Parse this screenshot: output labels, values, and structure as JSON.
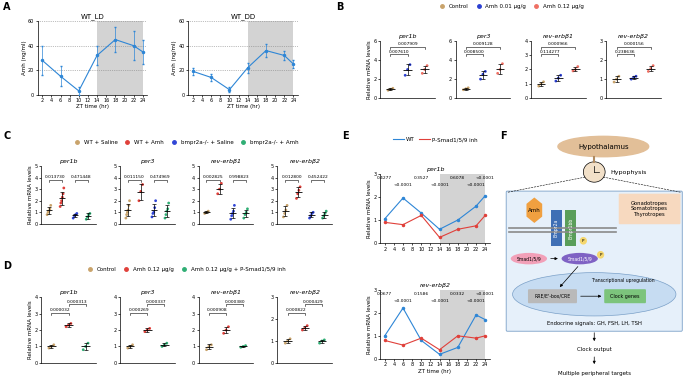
{
  "panel_labels": [
    "A",
    "B",
    "C",
    "D",
    "E",
    "F"
  ],
  "chart_data": [
    {
      "type": "line",
      "title": "WT_LD",
      "xlabel": "ZT time (hr)",
      "ylabel": "Amh (ng/ml)",
      "x": [
        2,
        6,
        10,
        14,
        18,
        22,
        24
      ],
      "values": [
        28,
        15,
        3,
        32,
        45,
        40,
        35
      ],
      "errors": [
        12,
        8,
        3,
        8,
        10,
        12,
        10
      ],
      "color": "#2e86d6",
      "marker": "circle",
      "xlim": [
        1,
        25
      ],
      "xticks": [
        2,
        4,
        6,
        8,
        10,
        12,
        14,
        16,
        18,
        20,
        22,
        24
      ],
      "ylim": [
        0,
        60
      ],
      "yticks": [
        0,
        20,
        40,
        60
      ],
      "grid": true,
      "dark_phase": [
        14,
        24
      ]
    },
    {
      "type": "line",
      "title": "WT_DD",
      "xlabel": "ZT time (hr)",
      "ylabel": "Amh (ng/ml)",
      "x": [
        2,
        6,
        10,
        14,
        18,
        22,
        24
      ],
      "values": [
        19,
        14,
        4,
        22,
        36,
        32,
        25
      ],
      "errors": [
        3,
        3,
        2,
        4,
        5,
        4,
        3
      ],
      "color": "#2e86d6",
      "marker": "circle",
      "xlim": [
        1,
        25
      ],
      "xticks": [
        2,
        4,
        6,
        8,
        10,
        12,
        14,
        16,
        18,
        20,
        22,
        24
      ],
      "ylim": [
        0,
        60
      ],
      "yticks": [
        0,
        20,
        40,
        60
      ],
      "grid": true,
      "dark_phase": [
        14,
        24
      ]
    },
    {
      "type": "dot",
      "ylabel": "Relative mRNA levels",
      "legend": "upper center",
      "tick_labels": "y",
      "series": [
        {
          "name": "Control",
          "color": "#c9a36b"
        },
        {
          "name": "Amh 0.01 µg/g",
          "color": "#2b3fd1"
        },
        {
          "name": "Amh 0.12 µg/g",
          "color": "#ef6f63"
        }
      ],
      "panels": [
        {
          "title": "per1b",
          "ylim": [
            0,
            6
          ],
          "yticks": [
            0,
            2,
            4,
            6
          ],
          "values": [
            [
              0.85,
              0.95,
              1.05
            ],
            [
              2.4,
              3.0,
              3.5
            ],
            [
              2.6,
              3.0,
              3.4
            ]
          ],
          "comparisons": [
            {
              "groups": [
                0,
                1
              ],
              "p": "0.007610"
            },
            {
              "groups": [
                0,
                2
              ],
              "p": "0.007909"
            }
          ]
        },
        {
          "title": "per3",
          "ylim": [
            0,
            6
          ],
          "yticks": [
            0,
            2,
            4,
            6
          ],
          "values": [
            [
              0.9,
              1.0,
              1.1
            ],
            [
              2.0,
              2.5,
              2.8
            ],
            [
              2.6,
              3.0,
              3.6
            ]
          ],
          "comparisons": [
            {
              "groups": [
                0,
                1
              ],
              "p": "0.008500"
            },
            {
              "groups": [
                0,
                2
              ],
              "p": "0.009128"
            }
          ]
        },
        {
          "title": "rev-erbβ1",
          "ylim": [
            0,
            4
          ],
          "yticks": [
            0,
            1,
            2,
            3,
            4
          ],
          "values": [
            [
              0.85,
              1.0,
              1.15
            ],
            [
              1.2,
              1.4,
              1.6
            ],
            [
              1.9,
              2.0,
              2.2
            ]
          ],
          "comparisons": [
            {
              "groups": [
                0,
                1
              ],
              "p": "0.114277"
            },
            {
              "groups": [
                0,
                2
              ],
              "p": "0.000966"
            }
          ]
        },
        {
          "title": "rev-erbβ2",
          "ylim": [
            0,
            3
          ],
          "yticks": [
            0,
            1,
            2,
            3
          ],
          "values": [
            [
              0.85,
              1.0,
              1.15
            ],
            [
              1.0,
              1.1,
              1.15
            ],
            [
              1.4,
              1.55,
              1.7
            ]
          ],
          "comparisons": [
            {
              "groups": [
                0,
                1
              ],
              "p": "0.238636"
            },
            {
              "groups": [
                0,
                2
              ],
              "p": "0.000156"
            }
          ]
        }
      ]
    },
    {
      "type": "dot",
      "ylabel": "Relative mRNA levels",
      "legend": "upper center",
      "tick_labels": "y",
      "series": [
        {
          "name": "WT + Saline",
          "color": "#c9a36b"
        },
        {
          "name": "WT + Amh",
          "color": "#e0403a"
        },
        {
          "name": "bmpr2a-/- + Saline",
          "color": "#3146d6"
        },
        {
          "name": "bmpr2a-/- + Amh",
          "color": "#2fae74"
        }
      ],
      "panels": [
        {
          "title": "per1b",
          "ylim": [
            0,
            5
          ],
          "yticks": [
            0,
            1,
            2,
            3,
            4,
            5
          ],
          "values": [
            [
              0.8,
              1.0,
              1.1,
              1.3,
              1.6
            ],
            [
              1.5,
              1.8,
              2.0,
              2.3,
              2.6,
              3.1
            ],
            [
              0.5,
              0.7,
              0.8,
              0.9
            ],
            [
              0.4,
              0.6,
              0.8,
              0.9
            ]
          ],
          "comparisons": [
            {
              "groups": [
                0,
                1
              ],
              "p": "0.013730"
            },
            {
              "groups": [
                2,
                3
              ],
              "p": "0.471448"
            }
          ]
        },
        {
          "title": "per3",
          "ylim": [
            0,
            5
          ],
          "yticks": [
            0,
            1,
            2,
            3,
            4,
            5
          ],
          "values": [
            [
              0.5,
              0.8,
              1.0,
              1.2,
              1.6,
              2.0
            ],
            [
              2.0,
              2.8,
              3.4
            ],
            [
              0.6,
              0.9,
              1.0,
              1.4,
              2.0
            ],
            [
              0.5,
              0.8,
              1.1,
              1.3,
              1.8
            ]
          ],
          "comparisons": [
            {
              "groups": [
                0,
                1
              ],
              "p": "0.011150"
            },
            {
              "groups": [
                2,
                3
              ],
              "p": "0.474969"
            }
          ]
        },
        {
          "title": "rev-erbβ1",
          "ylim": [
            0,
            5
          ],
          "yticks": [
            0,
            1,
            2,
            3,
            4,
            5
          ],
          "values": [
            [
              0.9,
              1.0,
              1.1
            ],
            [
              2.6,
              3.0,
              3.5
            ],
            [
              0.4,
              0.7,
              0.9,
              1.1,
              1.6
            ],
            [
              0.5,
              0.8,
              1.0,
              1.3
            ]
          ],
          "comparisons": [
            {
              "groups": [
                0,
                1
              ],
              "p": "0.002825"
            },
            {
              "groups": [
                2,
                3
              ],
              "p": "0.998823"
            }
          ]
        },
        {
          "title": "rev-erbβ2",
          "ylim": [
            0,
            5
          ],
          "yticks": [
            0,
            1,
            2,
            3,
            4,
            5
          ],
          "values": [
            [
              0.6,
              0.9,
              1.2,
              1.6
            ],
            [
              2.2,
              2.6,
              2.9,
              3.2
            ],
            [
              0.5,
              0.7,
              0.9,
              1.0
            ],
            [
              0.5,
              0.7,
              0.9,
              1.1
            ]
          ],
          "comparisons": [
            {
              "groups": [
                0,
                1
              ],
              "p": "0.012800"
            },
            {
              "groups": [
                2,
                3
              ],
              "p": "0.452422"
            }
          ]
        }
      ]
    },
    {
      "type": "dot",
      "ylabel": "Relative mRNA levels",
      "legend": "upper center",
      "tick_labels": "y",
      "series": [
        {
          "name": "Control",
          "color": "#c9a36b"
        },
        {
          "name": "Amh 0.12 µg/g",
          "color": "#e0403a"
        },
        {
          "name": "Amh 0.12 µg/g + P-Smad1/5/9 inh",
          "color": "#2fae74"
        }
      ],
      "panels": [
        {
          "title": "per1b",
          "ylim": [
            0,
            4
          ],
          "yticks": [
            0,
            1,
            2,
            3,
            4
          ],
          "values": [
            [
              0.9,
              1.0,
              1.1
            ],
            [
              2.2,
              2.3,
              2.4
            ],
            [
              0.8,
              1.0,
              1.2
            ]
          ],
          "comparisons": [
            {
              "groups": [
                0,
                1
              ],
              "p": "0.000032"
            },
            {
              "groups": [
                1,
                2
              ],
              "p": "0.000313"
            }
          ]
        },
        {
          "title": "per3",
          "ylim": [
            0,
            4
          ],
          "yticks": [
            0,
            1,
            2,
            3,
            4
          ],
          "values": [
            [
              0.9,
              1.0,
              1.1
            ],
            [
              1.9,
              2.0,
              2.1
            ],
            [
              1.0,
              1.1,
              1.2
            ]
          ],
          "comparisons": [
            {
              "groups": [
                0,
                1
              ],
              "p": "0.000269"
            },
            {
              "groups": [
                1,
                2
              ],
              "p": "0.000337"
            }
          ]
        },
        {
          "title": "rev-erbβ1",
          "ylim": [
            0,
            4
          ],
          "yticks": [
            0,
            1,
            2,
            3,
            4
          ],
          "values": [
            [
              0.8,
              1.0,
              1.1
            ],
            [
              1.8,
              2.0,
              2.2
            ],
            [
              0.95,
              1.0,
              1.05
            ]
          ],
          "comparisons": [
            {
              "groups": [
                0,
                1
              ],
              "p": "0.000908"
            },
            {
              "groups": [
                1,
                2
              ],
              "p": "0.000380"
            }
          ]
        },
        {
          "title": "rev-erbβ2",
          "ylim": [
            0,
            3
          ],
          "yticks": [
            0,
            1,
            2,
            3
          ],
          "values": [
            [
              0.9,
              1.0,
              1.1
            ],
            [
              1.5,
              1.6,
              1.7
            ],
            [
              0.9,
              1.0,
              1.05
            ]
          ],
          "comparisons": [
            {
              "groups": [
                0,
                1
              ],
              "p": "0.000822"
            },
            {
              "groups": [
                1,
                2
              ],
              "p": "0.000429"
            }
          ]
        }
      ]
    },
    {
      "type": "multi_line",
      "xlabel": "ZT time (hr)",
      "ylabel": "Relative mRNA levels",
      "legend": "upper center",
      "marker": "circle",
      "dark_phase": [
        14,
        24
      ],
      "series": [
        {
          "name": "WT",
          "color": "#2e86d6"
        },
        {
          "name": "P-Smad1/5/9 inh",
          "color": "#e0403a"
        }
      ],
      "panels": [
        {
          "title": "per1b",
          "x": [
            2,
            6,
            10,
            14,
            18,
            22,
            24
          ],
          "xlim": [
            1,
            25
          ],
          "xticks": [
            2,
            4,
            6,
            8,
            10,
            12,
            14,
            16,
            18,
            20,
            22,
            24
          ],
          "ylim": [
            0,
            3
          ],
          "yticks": [
            0,
            1,
            2,
            3
          ],
          "values": [
            [
              1.05,
              1.95,
              1.3,
              0.6,
              1.0,
              1.6,
              2.05
            ],
            [
              0.9,
              0.8,
              1.2,
              0.25,
              0.6,
              0.75,
              1.2
            ]
          ],
          "p_values": [
            {
              "x": 2,
              "text": "0.4277"
            },
            {
              "x": 6,
              "text": "<0.0001"
            },
            {
              "x": 10,
              "text": "0.3527"
            },
            {
              "x": 14,
              "text": "<0.0001"
            },
            {
              "x": 18,
              "text": "0.6078"
            },
            {
              "x": 22,
              "text": "<0.0001"
            },
            {
              "x": 24,
              "text": "<0.0001"
            }
          ]
        },
        {
          "title": "rev-erbβ2",
          "x": [
            2,
            6,
            10,
            14,
            18,
            22,
            24
          ],
          "xlim": [
            1,
            25
          ],
          "xticks": [
            2,
            4,
            6,
            8,
            10,
            12,
            14,
            16,
            18,
            20,
            22,
            24
          ],
          "ylim": [
            0,
            3
          ],
          "yticks": [
            0,
            1,
            2,
            3
          ],
          "values": [
            [
              1.0,
              2.2,
              0.8,
              0.2,
              0.5,
              1.9,
              1.7
            ],
            [
              0.8,
              0.6,
              0.9,
              0.4,
              1.0,
              0.9,
              1.0
            ]
          ],
          "p_values": [
            {
              "x": 2,
              "text": "0.0677"
            },
            {
              "x": 6,
              "text": "<0.0001"
            },
            {
              "x": 10,
              "text": "0.1586"
            },
            {
              "x": 14,
              "text": "<0.0001"
            },
            {
              "x": 18,
              "text": "0.0332"
            },
            {
              "x": 22,
              "text": "<0.0001"
            },
            {
              "x": 24,
              "text": "<0.0001"
            }
          ]
        }
      ]
    }
  ],
  "diagram": {
    "hypothalamus": "Hypothalamus",
    "hypophysis": "Hypophysis",
    "cell_types": [
      "Gonadotropes",
      "Somatotropes",
      "Thyrotropes"
    ],
    "ligand": "Amh",
    "receptors": [
      "Bmpr2a",
      "Bmpr1bb"
    ],
    "smad": "Smad1/5/9",
    "phospho": "P",
    "phospho_smad": "Smad1/5/9",
    "elements": "RRE/E'-box/CRE",
    "genes": "Clock genes",
    "transcription": "Transcriptional upregulation",
    "signals": "Endocrine signals: GH, FSH, LH, TSH",
    "output": "Clock output",
    "targets": "Multiple peripheral targets"
  }
}
